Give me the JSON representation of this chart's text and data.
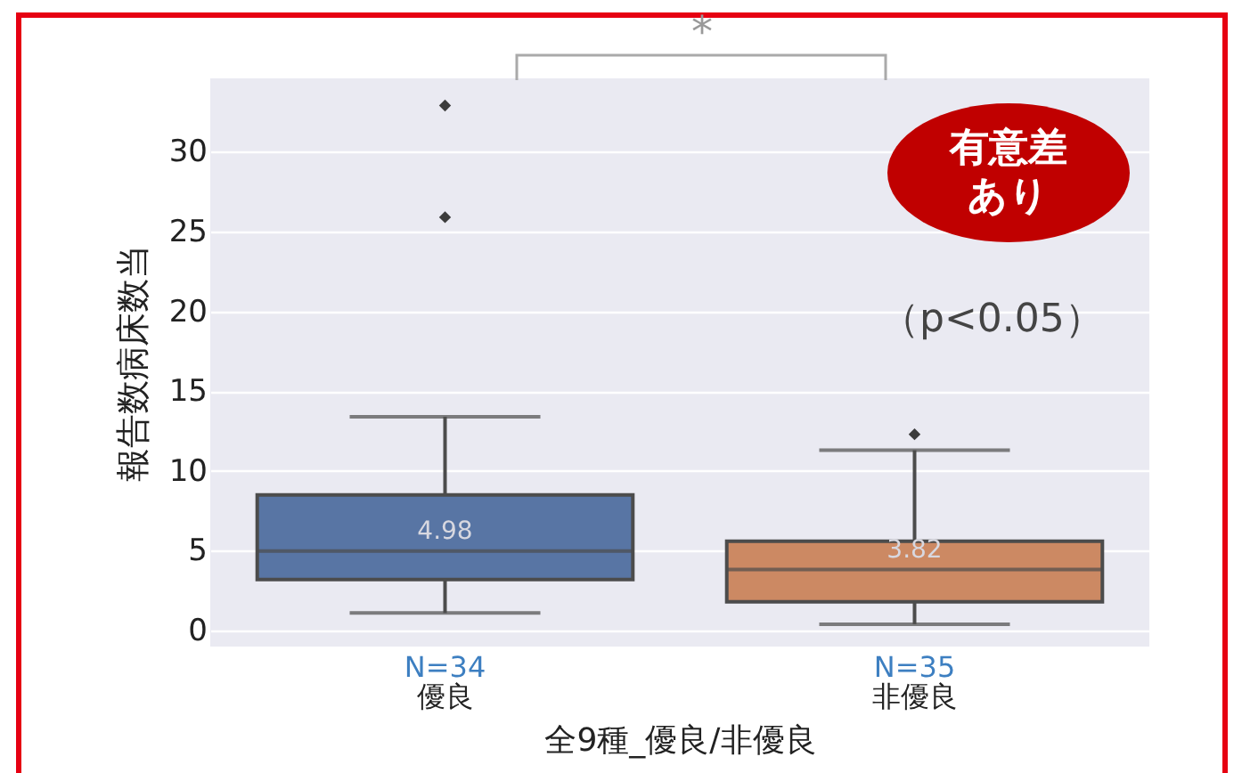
{
  "chart_data": {
    "type": "box",
    "xlabel": "全9種_優良/非優良",
    "ylabel": "報告数病床数当",
    "categories": [
      "優良",
      "非優良"
    ],
    "colors": [
      "#5875a4",
      "#cc8963"
    ],
    "boxes": [
      {
        "low": 1.1,
        "q1": 3.2,
        "median": 4.98,
        "q3": 8.5,
        "high": 13.4,
        "outliers": [
          32.9,
          25.9
        ]
      },
      {
        "low": 0.4,
        "q1": 1.8,
        "median": 3.82,
        "q3": 5.6,
        "high": 11.3,
        "outliers": [
          12.3
        ]
      }
    ],
    "ylim": [
      -1,
      34.6
    ],
    "yticks": [
      0,
      5,
      10,
      15,
      20,
      25,
      30
    ],
    "grid": "y",
    "annotations": [
      {
        "text": "4.98",
        "x": "優良",
        "y": 4.98
      },
      {
        "text": "3.82",
        "x": "非優良",
        "y": 3.82
      },
      "N=34",
      "N=35",
      "*",
      "有意差あり",
      "（p<0.05）"
    ]
  }
}
